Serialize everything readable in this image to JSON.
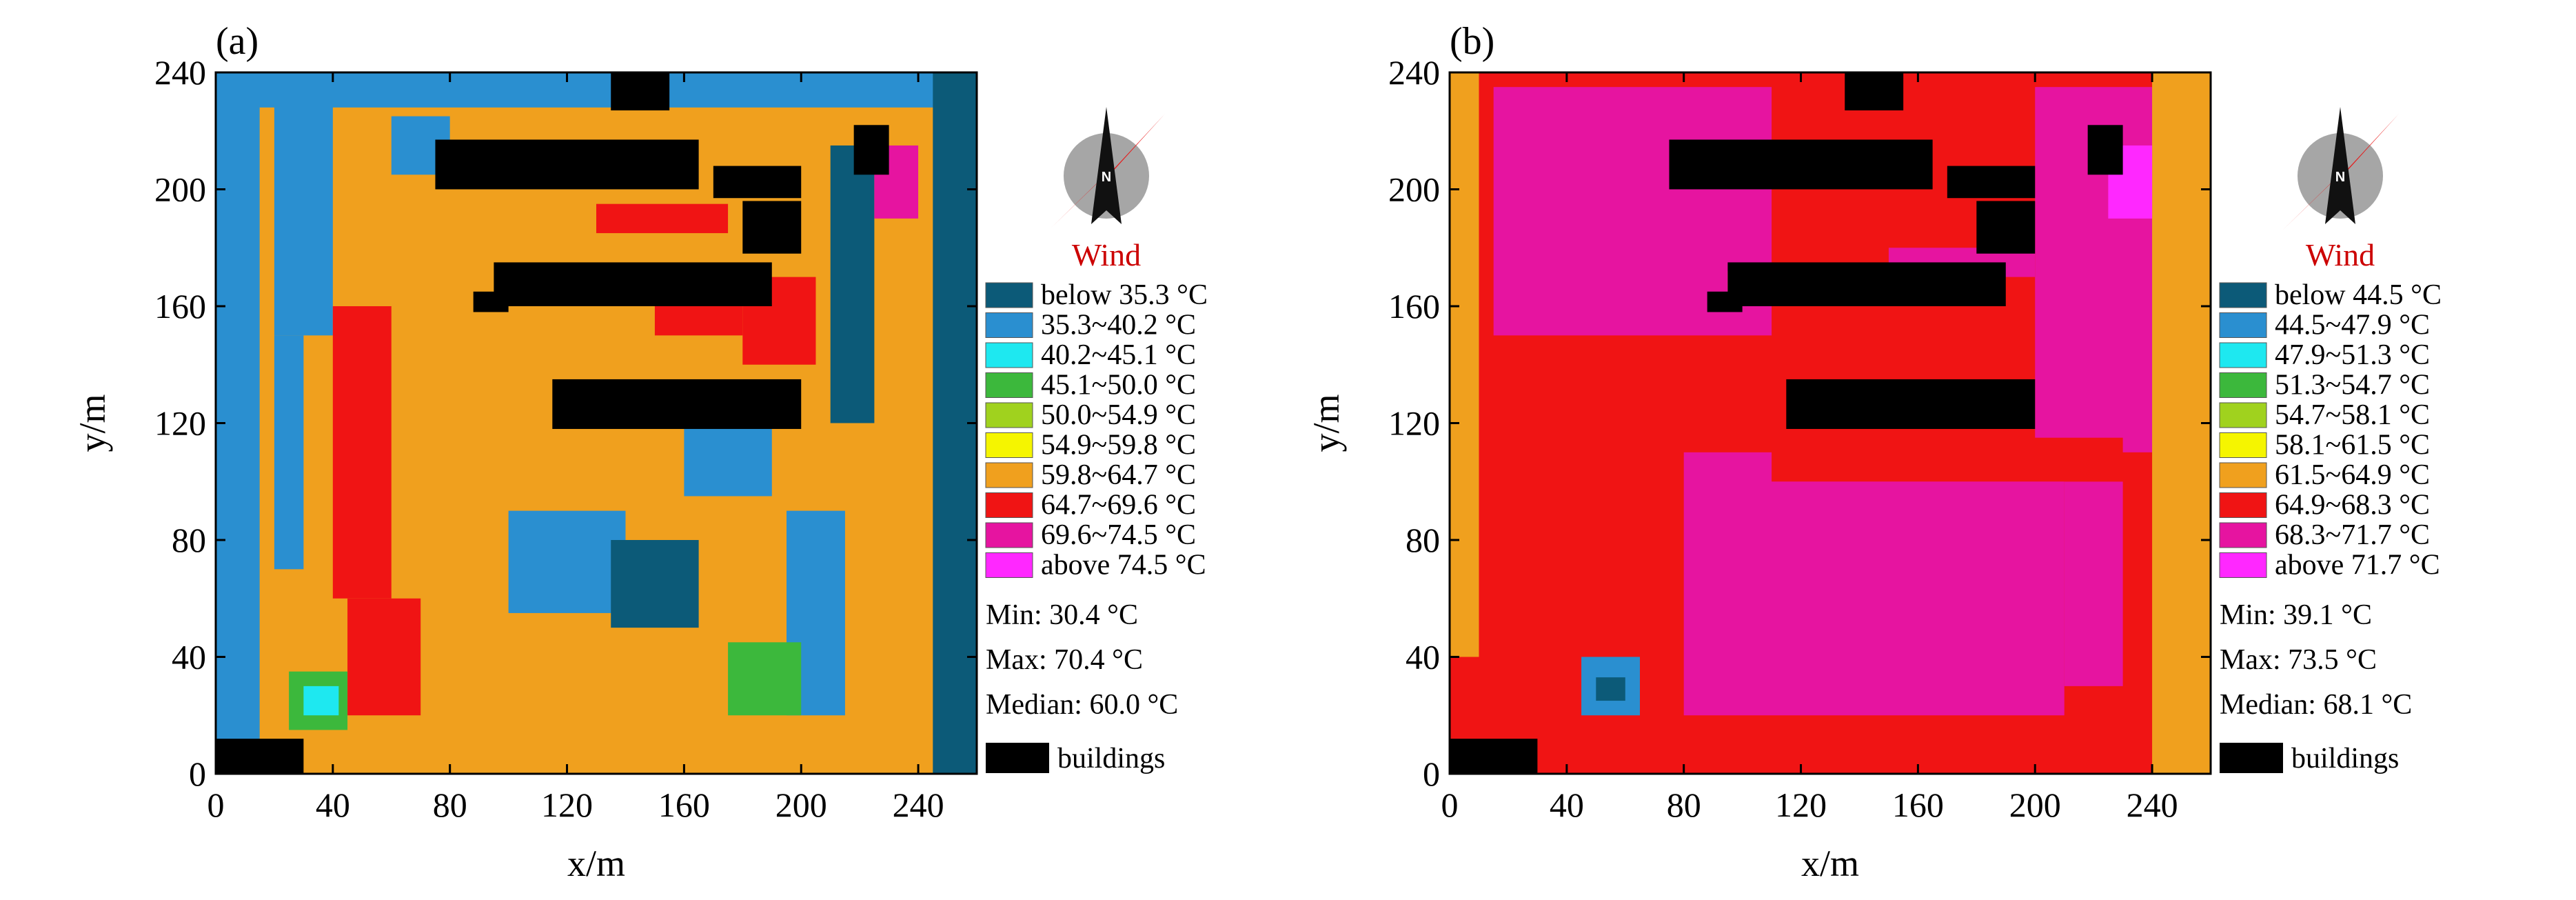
{
  "chart_data": [
    {
      "type": "heatmap",
      "panel_label": "(a)",
      "xlabel": "x/m",
      "ylabel": "y/m",
      "xlim": [
        0,
        260
      ],
      "ylim": [
        0,
        240
      ],
      "xticks": [
        0,
        40,
        80,
        120,
        160,
        200,
        240
      ],
      "yticks": [
        0,
        40,
        80,
        120,
        160,
        200,
        240
      ],
      "wind_label": "Wind",
      "compass_letter": "N",
      "legend": [
        {
          "label": "below 35.3 °C",
          "color": "#0c5a78"
        },
        {
          "label": "35.3~40.2 °C",
          "color": "#2a8fd0"
        },
        {
          "label": "40.2~45.1 °C",
          "color": "#1ee8f0"
        },
        {
          "label": "45.1~50.0 °C",
          "color": "#3cb83c"
        },
        {
          "label": "50.0~54.9 °C",
          "color": "#a0d21e"
        },
        {
          "label": "54.9~59.8 °C",
          "color": "#f5f500"
        },
        {
          "label": "59.8~64.7 °C",
          "color": "#f0a01e"
        },
        {
          "label": "64.7~69.6 °C",
          "color": "#f01414"
        },
        {
          "label": "69.6~74.5 °C",
          "color": "#e614a0"
        },
        {
          "label": "above 74.5 °C",
          "color": "#ff28ff"
        }
      ],
      "stats": [
        "Min: 30.4 °C",
        "Max: 70.4 °C",
        "Median: 60.0 °C"
      ],
      "buildings_label": "buildings",
      "background_class": 6,
      "regions": [
        {
          "x": [
            0,
            15
          ],
          "y": [
            0,
            240
          ],
          "class": 1
        },
        {
          "x": [
            0,
            260
          ],
          "y": [
            228,
            240
          ],
          "class": 1
        },
        {
          "x": [
            245,
            260
          ],
          "y": [
            0,
            240
          ],
          "class": 0
        },
        {
          "x": [
            20,
            40
          ],
          "y": [
            150,
            230
          ],
          "class": 1
        },
        {
          "x": [
            40,
            60
          ],
          "y": [
            60,
            160
          ],
          "class": 7
        },
        {
          "x": [
            45,
            70
          ],
          "y": [
            20,
            60
          ],
          "class": 7
        },
        {
          "x": [
            25,
            45
          ],
          "y": [
            15,
            35
          ],
          "class": 3
        },
        {
          "x": [
            30,
            42
          ],
          "y": [
            20,
            30
          ],
          "class": 2
        },
        {
          "x": [
            20,
            30
          ],
          "y": [
            70,
            150
          ],
          "class": 1
        },
        {
          "x": [
            100,
            140
          ],
          "y": [
            55,
            90
          ],
          "class": 1
        },
        {
          "x": [
            135,
            165
          ],
          "y": [
            50,
            80
          ],
          "class": 0
        },
        {
          "x": [
            160,
            190
          ],
          "y": [
            95,
            120
          ],
          "class": 1
        },
        {
          "x": [
            195,
            215
          ],
          "y": [
            20,
            90
          ],
          "class": 1
        },
        {
          "x": [
            175,
            200
          ],
          "y": [
            20,
            45
          ],
          "class": 3
        },
        {
          "x": [
            210,
            225
          ],
          "y": [
            120,
            215
          ],
          "class": 0
        },
        {
          "x": [
            180,
            205
          ],
          "y": [
            140,
            170
          ],
          "class": 7
        },
        {
          "x": [
            130,
            175
          ],
          "y": [
            185,
            195
          ],
          "class": 7
        },
        {
          "x": [
            225,
            240
          ],
          "y": [
            190,
            215
          ],
          "class": 8
        },
        {
          "x": [
            150,
            180
          ],
          "y": [
            150,
            160
          ],
          "class": 7
        },
        {
          "x": [
            60,
            80
          ],
          "y": [
            205,
            225
          ],
          "class": 1
        }
      ],
      "buildings": [
        {
          "x": [
            75,
            165
          ],
          "y": [
            200,
            217
          ]
        },
        {
          "x": [
            170,
            200
          ],
          "y": [
            197,
            208
          ]
        },
        {
          "x": [
            180,
            200
          ],
          "y": [
            178,
            196
          ]
        },
        {
          "x": [
            95,
            190
          ],
          "y": [
            160,
            175
          ]
        },
        {
          "x": [
            88,
            100
          ],
          "y": [
            158,
            165
          ]
        },
        {
          "x": [
            115,
            200
          ],
          "y": [
            118,
            135
          ]
        },
        {
          "x": [
            135,
            155
          ],
          "y": [
            227,
            240
          ]
        },
        {
          "x": [
            218,
            230
          ],
          "y": [
            205,
            222
          ]
        },
        {
          "x": [
            0,
            30
          ],
          "y": [
            0,
            12
          ]
        }
      ]
    },
    {
      "type": "heatmap",
      "panel_label": "(b)",
      "xlabel": "x/m",
      "ylabel": "y/m",
      "xlim": [
        0,
        260
      ],
      "ylim": [
        0,
        240
      ],
      "xticks": [
        0,
        40,
        80,
        120,
        160,
        200,
        240
      ],
      "yticks": [
        0,
        40,
        80,
        120,
        160,
        200,
        240
      ],
      "wind_label": "Wind",
      "compass_letter": "N",
      "legend": [
        {
          "label": "below 44.5 °C",
          "color": "#0c5a78"
        },
        {
          "label": "44.5~47.9 °C",
          "color": "#2a8fd0"
        },
        {
          "label": "47.9~51.3 °C",
          "color": "#1ee8f0"
        },
        {
          "label": "51.3~54.7 °C",
          "color": "#3cb83c"
        },
        {
          "label": "54.7~58.1 °C",
          "color": "#a0d21e"
        },
        {
          "label": "58.1~61.5 °C",
          "color": "#f5f500"
        },
        {
          "label": "61.5~64.9 °C",
          "color": "#f0a01e"
        },
        {
          "label": "64.9~68.3 °C",
          "color": "#f01414"
        },
        {
          "label": "68.3~71.7 °C",
          "color": "#e614a0"
        },
        {
          "label": "above 71.7 °C",
          "color": "#ff28ff"
        }
      ],
      "stats": [
        "Min: 39.1 °C",
        "Max: 73.5 °C",
        "Median: 68.1 °C"
      ],
      "buildings_label": "buildings",
      "background_class": 7,
      "regions": [
        {
          "x": [
            15,
            110
          ],
          "y": [
            150,
            235
          ],
          "class": 8
        },
        {
          "x": [
            200,
            245
          ],
          "y": [
            110,
            235
          ],
          "class": 8
        },
        {
          "x": [
            80,
            210
          ],
          "y": [
            20,
            110
          ],
          "class": 8
        },
        {
          "x": [
            210,
            230
          ],
          "y": [
            30,
            100
          ],
          "class": 8
        },
        {
          "x": [
            150,
            200
          ],
          "y": [
            170,
            180
          ],
          "class": 8
        },
        {
          "x": [
            240,
            260
          ],
          "y": [
            0,
            240
          ],
          "class": 6
        },
        {
          "x": [
            225,
            240
          ],
          "y": [
            190,
            215
          ],
          "class": 9
        },
        {
          "x": [
            45,
            65
          ],
          "y": [
            20,
            40
          ],
          "class": 1
        },
        {
          "x": [
            50,
            60
          ],
          "y": [
            25,
            33
          ],
          "class": 0
        },
        {
          "x": [
            0,
            10
          ],
          "y": [
            40,
            240
          ],
          "class": 6
        },
        {
          "x": [
            95,
            110
          ],
          "y": [
            165,
            172
          ],
          "class": 5
        },
        {
          "x": [
            110,
            230
          ],
          "y": [
            100,
            115
          ],
          "class": 7
        }
      ],
      "buildings": [
        {
          "x": [
            75,
            165
          ],
          "y": [
            200,
            217
          ]
        },
        {
          "x": [
            170,
            200
          ],
          "y": [
            197,
            208
          ]
        },
        {
          "x": [
            180,
            200
          ],
          "y": [
            178,
            196
          ]
        },
        {
          "x": [
            95,
            190
          ],
          "y": [
            160,
            175
          ]
        },
        {
          "x": [
            88,
            100
          ],
          "y": [
            158,
            165
          ]
        },
        {
          "x": [
            115,
            200
          ],
          "y": [
            118,
            135
          ]
        },
        {
          "x": [
            135,
            155
          ],
          "y": [
            227,
            240
          ]
        },
        {
          "x": [
            218,
            230
          ],
          "y": [
            205,
            222
          ]
        },
        {
          "x": [
            0,
            30
          ],
          "y": [
            0,
            12
          ]
        }
      ]
    }
  ]
}
